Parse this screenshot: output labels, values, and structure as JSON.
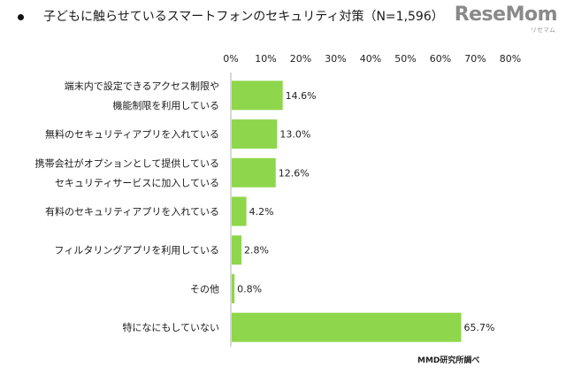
{
  "header": {
    "title": "子どもに触らせているスマートフォンのセキュリティ対策（N=1,596）",
    "logo_text": "ReseMom",
    "logo_sub": "リセマム"
  },
  "chart_data": {
    "type": "bar",
    "orientation": "horizontal",
    "title": "子どもに触らせているスマートフォンのセキュリティ対策（N=1,596）",
    "xlim": [
      0,
      80
    ],
    "x_ticks": [
      "0%",
      "10%",
      "20%",
      "30%",
      "40%",
      "50%",
      "60%",
      "70%",
      "80%"
    ],
    "bar_color": "#8ed64b",
    "categories": [
      [
        "端末内で設定できるアクセス制限や",
        "機能制限を利用している"
      ],
      [
        "無料のセキュリティアプリを入れている"
      ],
      [
        "携帯会社がオプションとして提供している",
        "セキュリティサービスに加入している"
      ],
      [
        "有料のセキュリティアプリを入れている"
      ],
      [
        "フィルタリングアプリを利用している"
      ],
      [
        "その他"
      ],
      [
        "特になにもしていない"
      ]
    ],
    "values": [
      14.6,
      13.0,
      12.6,
      4.2,
      2.8,
      0.8,
      65.7
    ],
    "value_labels": [
      "14.6%",
      "13.0%",
      "12.6%",
      "4.2%",
      "2.8%",
      "0.8%",
      "65.7%"
    ],
    "source": "MMD研究所調べ"
  }
}
